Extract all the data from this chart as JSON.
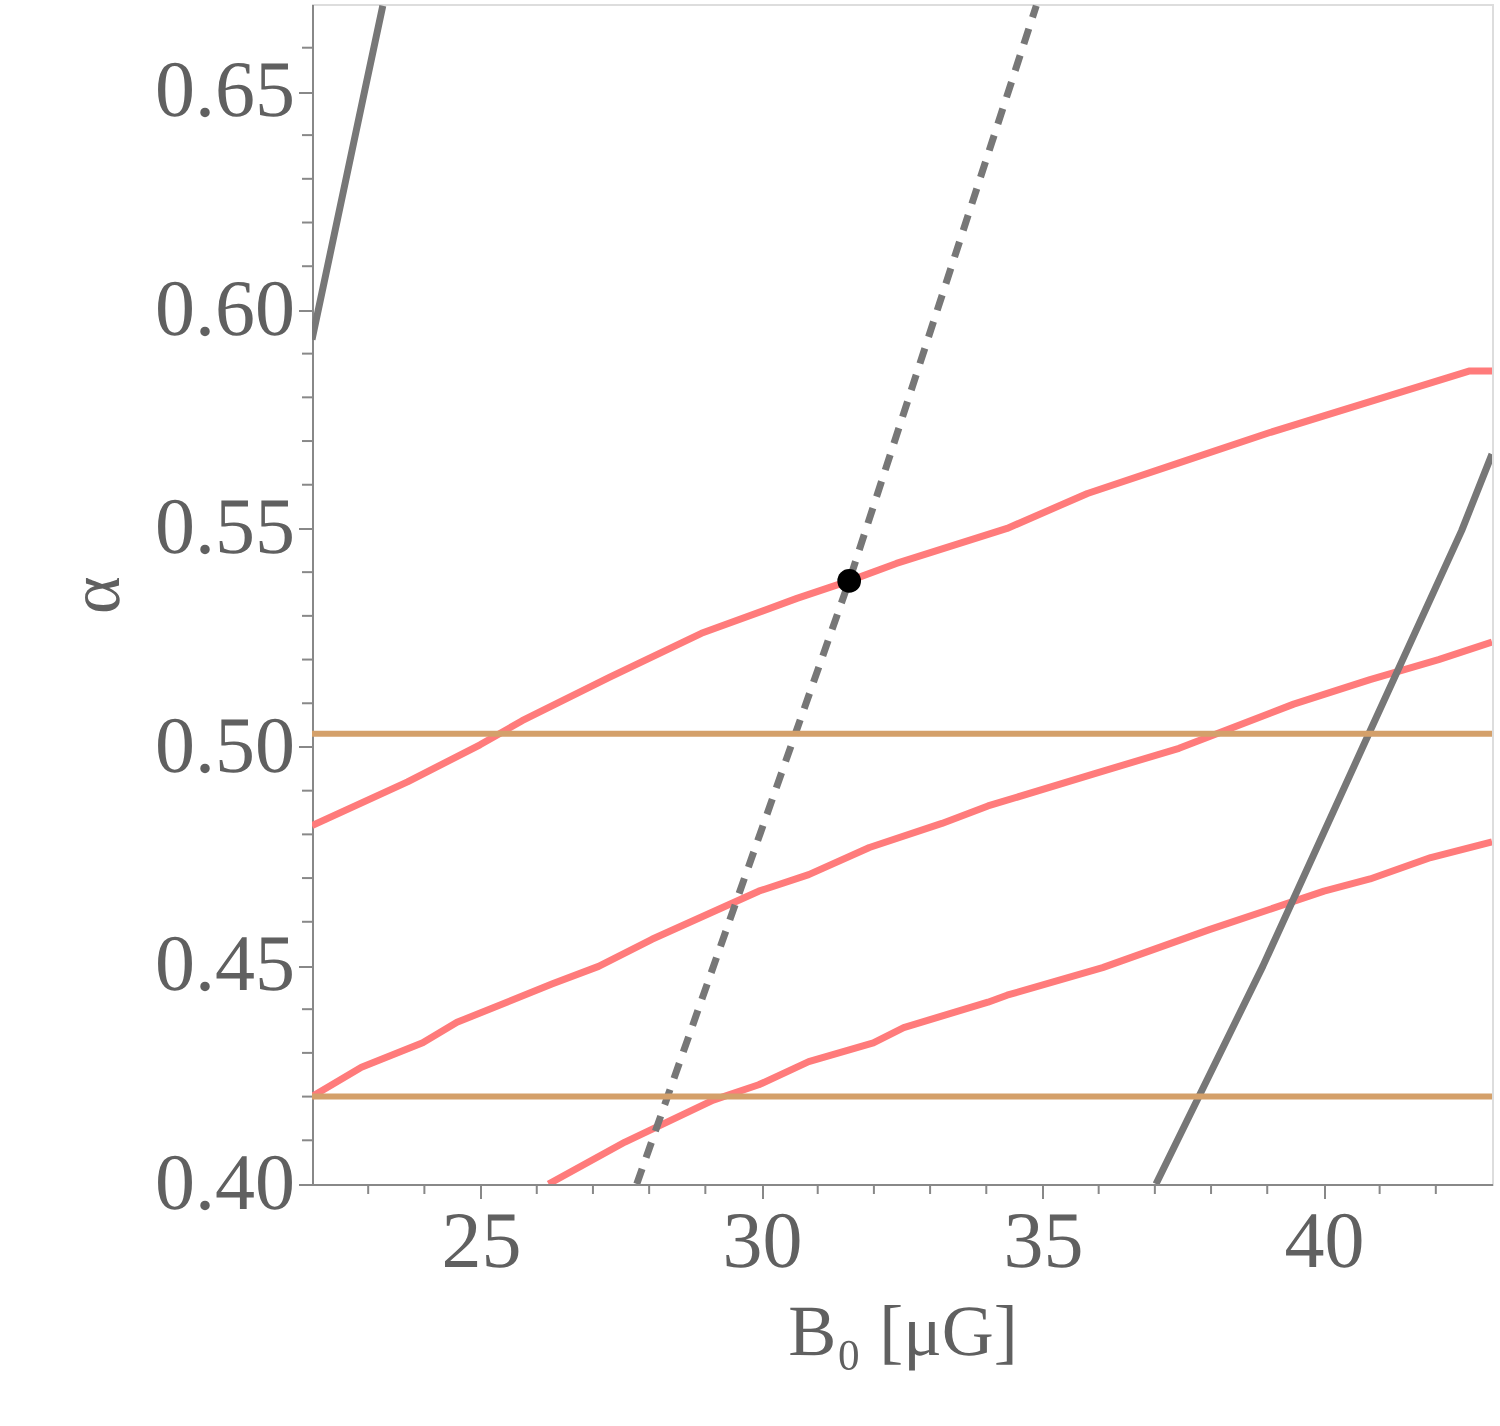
{
  "chart_data": {
    "type": "line",
    "xlabel": "B₀ [μG]",
    "ylabel": "α",
    "xlim": [
      22,
      43
    ],
    "ylim": [
      0.4,
      0.67
    ],
    "xticks": [
      {
        "value": 23,
        "label": null
      },
      {
        "value": 24,
        "label": null
      },
      25,
      {
        "value": 26,
        "label": null
      },
      {
        "value": 27,
        "label": null
      },
      {
        "value": 28,
        "label": null
      },
      {
        "value": 29,
        "label": null
      },
      30,
      {
        "value": 31,
        "label": null
      },
      {
        "value": 32,
        "label": null
      },
      {
        "value": 33,
        "label": null
      },
      {
        "value": 34,
        "label": null
      },
      35,
      {
        "value": 36,
        "label": null
      },
      {
        "value": 37,
        "label": null
      },
      {
        "value": 38,
        "label": null
      },
      {
        "value": 39,
        "label": null
      },
      40,
      {
        "value": 41,
        "label": null
      },
      {
        "value": 42,
        "label": null
      }
    ],
    "yticks": [
      {
        "value": 0.4,
        "label": "0.40"
      },
      {
        "value": 0.41,
        "label": null
      },
      {
        "value": 0.42,
        "label": null
      },
      {
        "value": 0.43,
        "label": null
      },
      {
        "value": 0.44,
        "label": null
      },
      0.45,
      {
        "value": 0.46,
        "label": null
      },
      {
        "value": 0.47,
        "label": null
      },
      {
        "value": 0.48,
        "label": null
      },
      {
        "value": 0.49,
        "label": null
      },
      {
        "value": 0.5,
        "label": "0.50"
      },
      {
        "value": 0.51,
        "label": null
      },
      {
        "value": 0.52,
        "label": null
      },
      {
        "value": 0.53,
        "label": null
      },
      {
        "value": 0.54,
        "label": null
      },
      0.55,
      {
        "value": 0.56,
        "label": null
      },
      {
        "value": 0.57,
        "label": null
      },
      {
        "value": 0.58,
        "label": null
      },
      {
        "value": 0.59,
        "label": null
      },
      {
        "value": 0.6,
        "label": "0.60"
      },
      {
        "value": 0.61,
        "label": null
      },
      {
        "value": 0.62,
        "label": null
      },
      {
        "value": 0.63,
        "label": null
      },
      {
        "value": 0.64,
        "label": null
      },
      0.65,
      {
        "value": 0.66,
        "label": null
      }
    ],
    "ref_lines": [
      {
        "axis": "y",
        "value": 0.503,
        "color": "#d4a06a"
      },
      {
        "axis": "y",
        "value": 0.42,
        "color": "#d4a06a"
      }
    ],
    "series": [
      {
        "color": "#ff7b7b",
        "x": [
          22.0,
          23.7,
          24.99,
          25.74,
          27.3,
          28.93,
          30.63,
          31.56,
          32.4,
          34.37,
          35.8,
          37.43,
          39.06,
          40.83,
          42.59,
          43.0
        ],
        "values": [
          0.482,
          0.492,
          0.5005,
          0.506,
          0.516,
          0.526,
          0.534,
          0.538,
          0.542,
          0.55,
          0.558,
          0.565,
          0.572,
          0.579,
          0.586,
          0.586
        ]
      },
      {
        "color": "#ff7b7b",
        "x": [
          22.0,
          22.88,
          23.97,
          24.58,
          26.28,
          27.1,
          28.05,
          29.95,
          30.84,
          31.92,
          33.21,
          34.03,
          35.93,
          37.43,
          39.47,
          40.83,
          42.05,
          43.0
        ],
        "values": [
          0.42,
          0.4267,
          0.4323,
          0.437,
          0.4458,
          0.4498,
          0.456,
          0.467,
          0.4708,
          0.477,
          0.4825,
          0.4865,
          0.4939,
          0.4997,
          0.5098,
          0.5154,
          0.52,
          0.524
        ]
      },
      {
        "color": "#ff7b7b",
        "x": [
          26.21,
          27.57,
          29.14,
          29.95,
          30.84,
          31.99,
          32.53,
          34.03,
          34.37,
          36.07,
          37.97,
          40.01,
          40.83,
          41.91,
          43.0
        ],
        "values": [
          0.4,
          0.4096,
          0.4192,
          0.4227,
          0.428,
          0.4323,
          0.4358,
          0.4416,
          0.4432,
          0.4495,
          0.4582,
          0.467,
          0.4698,
          0.4747,
          0.4783
        ]
      },
      {
        "color": "#777777",
        "line_style": "dashed",
        "x": [
          27.78,
          31.56,
          34.89
        ],
        "values": [
          0.4,
          0.538,
          0.6696
        ]
      },
      {
        "color": "#777777",
        "x": [
          22.0,
          22.95,
          23.26
        ],
        "values": [
          0.5932,
          0.6509,
          0.6696
        ]
      },
      {
        "color": "#777777",
        "x": [
          37.02,
          38.92,
          40.69,
          42.46,
          43.0
        ],
        "values": [
          0.4,
          0.4498,
          0.4997,
          0.5495,
          0.567
        ]
      },
      {
        "type": "scatter",
        "color": "#000000",
        "marker": "circle",
        "x": [
          31.56
        ],
        "values": [
          0.538
        ]
      }
    ]
  }
}
